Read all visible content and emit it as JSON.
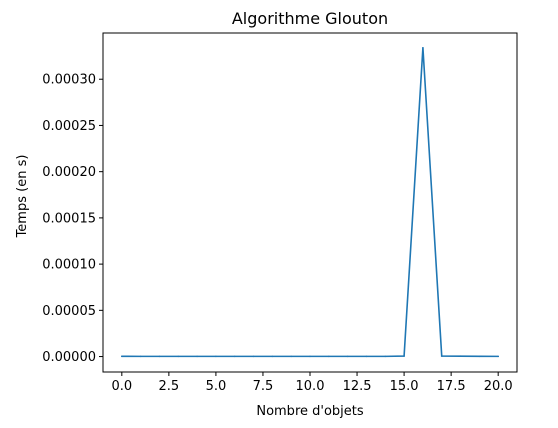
{
  "chart_data": {
    "type": "line",
    "title": "Algorithme Glouton",
    "xlabel": "Nombre d'objets",
    "ylabel": "Temps (en s)",
    "xlim": [
      -1,
      21
    ],
    "ylim": [
      -1.67e-05,
      0.00035
    ],
    "x_ticks": [
      0.0,
      2.5,
      5.0,
      7.5,
      10.0,
      12.5,
      15.0,
      17.5,
      20.0
    ],
    "x_tick_labels": [
      "0.0",
      "2.5",
      "5.0",
      "7.5",
      "10.0",
      "12.5",
      "15.0",
      "17.5",
      "20.0"
    ],
    "y_ticks": [
      0,
      5e-05,
      0.0001,
      0.00015,
      0.0002,
      0.00025,
      0.0003
    ],
    "y_tick_labels": [
      "0.00000",
      "0.00005",
      "0.00010",
      "0.00015",
      "0.00020",
      "0.00025",
      "0.00030"
    ],
    "grid": false,
    "series": [
      {
        "color": "#1f77b4",
        "x": [
          0,
          1,
          2,
          3,
          4,
          5,
          6,
          7,
          8,
          9,
          10,
          11,
          12,
          13,
          14,
          15,
          16,
          17,
          18,
          19,
          20
        ],
        "y": [
          3e-07,
          2e-07,
          2e-07,
          2e-07,
          2e-07,
          2e-07,
          2e-07,
          2e-07,
          2e-07,
          2e-07,
          2e-07,
          2e-07,
          2e-07,
          2e-07,
          2e-07,
          5e-07,
          0.000334,
          5e-07,
          4e-07,
          3e-07,
          2e-07
        ]
      }
    ]
  }
}
